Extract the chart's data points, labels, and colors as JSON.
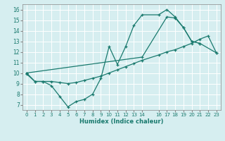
{
  "xlabel": "Humidex (Indice chaleur)",
  "bg_color": "#d6eef0",
  "line_color": "#1a7a6e",
  "grid_color": "#ffffff",
  "xlim": [
    -0.5,
    23.5
  ],
  "ylim": [
    6.5,
    16.5
  ],
  "xticks": [
    0,
    1,
    2,
    3,
    4,
    5,
    6,
    7,
    8,
    9,
    10,
    11,
    12,
    13,
    14,
    16,
    17,
    18,
    19,
    20,
    21,
    22,
    23
  ],
  "yticks": [
    7,
    8,
    9,
    10,
    11,
    12,
    13,
    14,
    15,
    16
  ],
  "line1_x": [
    0,
    1,
    2,
    3,
    4,
    5,
    6,
    7,
    8,
    9,
    10,
    11,
    12,
    13,
    14,
    16,
    17,
    18,
    19,
    20,
    21
  ],
  "line1_y": [
    10,
    9.2,
    9.2,
    8.8,
    7.8,
    6.8,
    7.3,
    7.5,
    8.0,
    9.5,
    12.5,
    10.8,
    12.5,
    14.5,
    15.5,
    15.5,
    16.0,
    15.3,
    14.3,
    13.0,
    12.8
  ],
  "line2_x": [
    0,
    14,
    17,
    18,
    19,
    20,
    21,
    23
  ],
  "line2_y": [
    10,
    11.5,
    15.3,
    15.2,
    14.3,
    13.0,
    12.8,
    11.9
  ],
  "line3_x": [
    0,
    1,
    2,
    3,
    4,
    5,
    6,
    7,
    8,
    9,
    10,
    11,
    12,
    13,
    14,
    16,
    17,
    18,
    19,
    20,
    21,
    22,
    23
  ],
  "line3_y": [
    9.9,
    9.2,
    9.2,
    9.2,
    9.1,
    9.0,
    9.1,
    9.3,
    9.5,
    9.7,
    10.0,
    10.3,
    10.6,
    10.9,
    11.2,
    11.7,
    12.0,
    12.2,
    12.5,
    12.8,
    13.2,
    13.5,
    11.9
  ]
}
